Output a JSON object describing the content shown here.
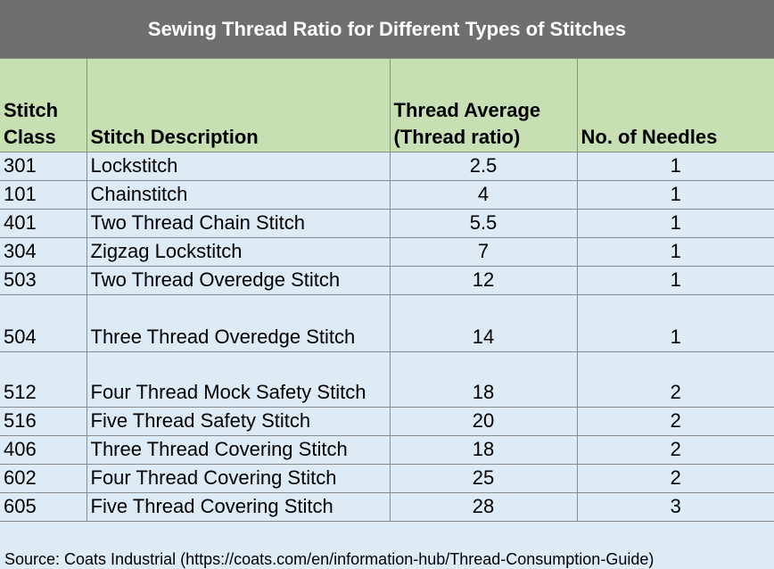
{
  "header": {
    "title": "Sewing Thread Ratio for Different Types of Stitches"
  },
  "table": {
    "columns": [
      "Stitch Class",
      "Stitch Description",
      "Thread Average (Thread ratio)",
      "No. of Needles"
    ],
    "rows": [
      [
        "301",
        "Lockstitch",
        2.5,
        1
      ],
      [
        "101",
        "Chainstitch",
        4,
        1
      ],
      [
        "401",
        "Two Thread Chain Stitch",
        5.5,
        1
      ],
      [
        "304",
        "Zigzag Lockstitch",
        7,
        1
      ],
      [
        "503",
        "Two Thread Overedge Stitch",
        12,
        1
      ],
      [
        "504",
        "Three Thread Overedge Stitch",
        14,
        1
      ],
      [
        "512",
        "Four Thread Mock Safety Stitch",
        18,
        2
      ],
      [
        "516",
        "Five Thread Safety Stitch",
        20,
        2
      ],
      [
        "406",
        "Three Thread Covering Stitch",
        18,
        2
      ],
      [
        "602",
        "Four Thread Covering Stitch",
        25,
        2
      ],
      [
        "605",
        "Five Thread Covering Stitch",
        28,
        3
      ]
    ]
  },
  "footer": {
    "source": "Source: Coats Industrial (https://coats.com/en/information-hub/Thread-Consumption-Guide)"
  }
}
